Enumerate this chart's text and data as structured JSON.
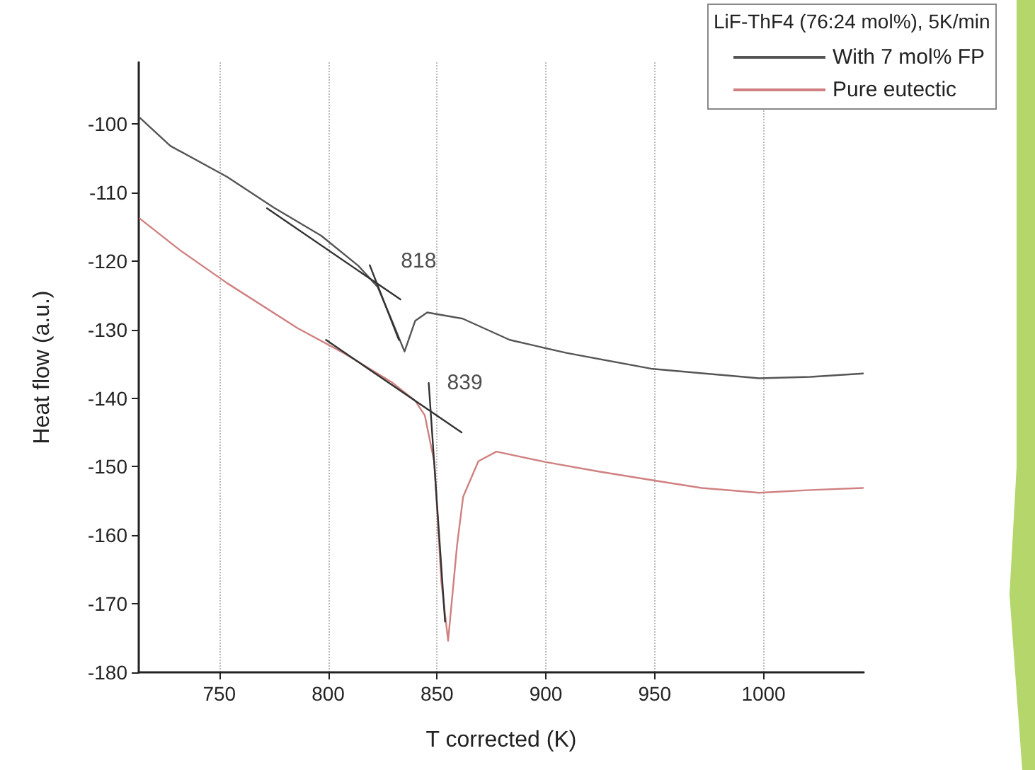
{
  "chart_data": {
    "type": "line",
    "xlabel": "T corrected (K)",
    "ylabel": "Heat flow (a.u.)",
    "legend_title": "LiF-ThF4 (76:24 mol%), 5K/min",
    "xlim": [
      713,
      1046
    ],
    "xticks": [
      750,
      800,
      850,
      900,
      950,
      1000
    ],
    "ylim": [
      -180,
      -91
    ],
    "yticks": [
      -180,
      -170,
      -160,
      -150,
      -140,
      -130,
      -120,
      -110,
      -100
    ],
    "grid": "x",
    "legend": "top right",
    "marker": "none",
    "line_style": "solid",
    "annotations": [
      {
        "text": "818",
        "x": 819.1,
        "y": -120.6
      },
      {
        "text": "839",
        "x": 846.2,
        "y": -137.8
      }
    ],
    "series": [
      {
        "name": "With 7 mol% FP",
        "color": "#555555",
        "x": [
          713.5,
          727.5,
          753.5,
          775,
          796.8,
          813.9,
          822.8,
          829.3,
          835.1,
          840,
          845.5,
          861.8,
          883.4,
          909.4,
          948.3,
          998,
          1021.6,
          1045.7
        ],
        "values": [
          -99.1,
          -103.2,
          -107.7,
          -112.2,
          -116.3,
          -120.7,
          -123.8,
          -128.7,
          -133.2,
          -128.7,
          -127.5,
          -128.4,
          -131.5,
          -133.4,
          -135.7,
          -137.1,
          -136.9,
          -136.4
        ]
      },
      {
        "name": "Pure eutectic",
        "color": "#d08080",
        "x": [
          713.5,
          731.9,
          753.5,
          786,
          807.6,
          829.3,
          840,
          844.4,
          848.8,
          852,
          855.1,
          859.2,
          862,
          869,
          877.3,
          899.5,
          924.3,
          949.4,
          971.6,
          998,
          1021.6,
          1045.7
        ],
        "values": [
          -113.8,
          -118.4,
          -123.2,
          -129.8,
          -133.5,
          -137.7,
          -140.4,
          -142.5,
          -149.4,
          -166.8,
          -175.4,
          -161.5,
          -154.4,
          -149.2,
          -147.8,
          -149.3,
          -150.7,
          -152,
          -153.1,
          -153.8,
          -153.4,
          -153.1
        ]
      },
      {
        "color": "#333333",
        "x": [
          771.9,
          833.2
        ],
        "values": [
          -112.3,
          -125.6
        ]
      },
      {
        "color": "#333333",
        "x": [
          819.1,
          832.5
        ],
        "values": [
          -120.6,
          -131.5
        ]
      },
      {
        "color": "#333333",
        "x": [
          799,
          861.3
        ],
        "values": [
          -131.5,
          -145
        ]
      },
      {
        "color": "#333333",
        "x": [
          846.2,
          853.7
        ],
        "values": [
          -137.8,
          -172.6
        ]
      }
    ]
  }
}
